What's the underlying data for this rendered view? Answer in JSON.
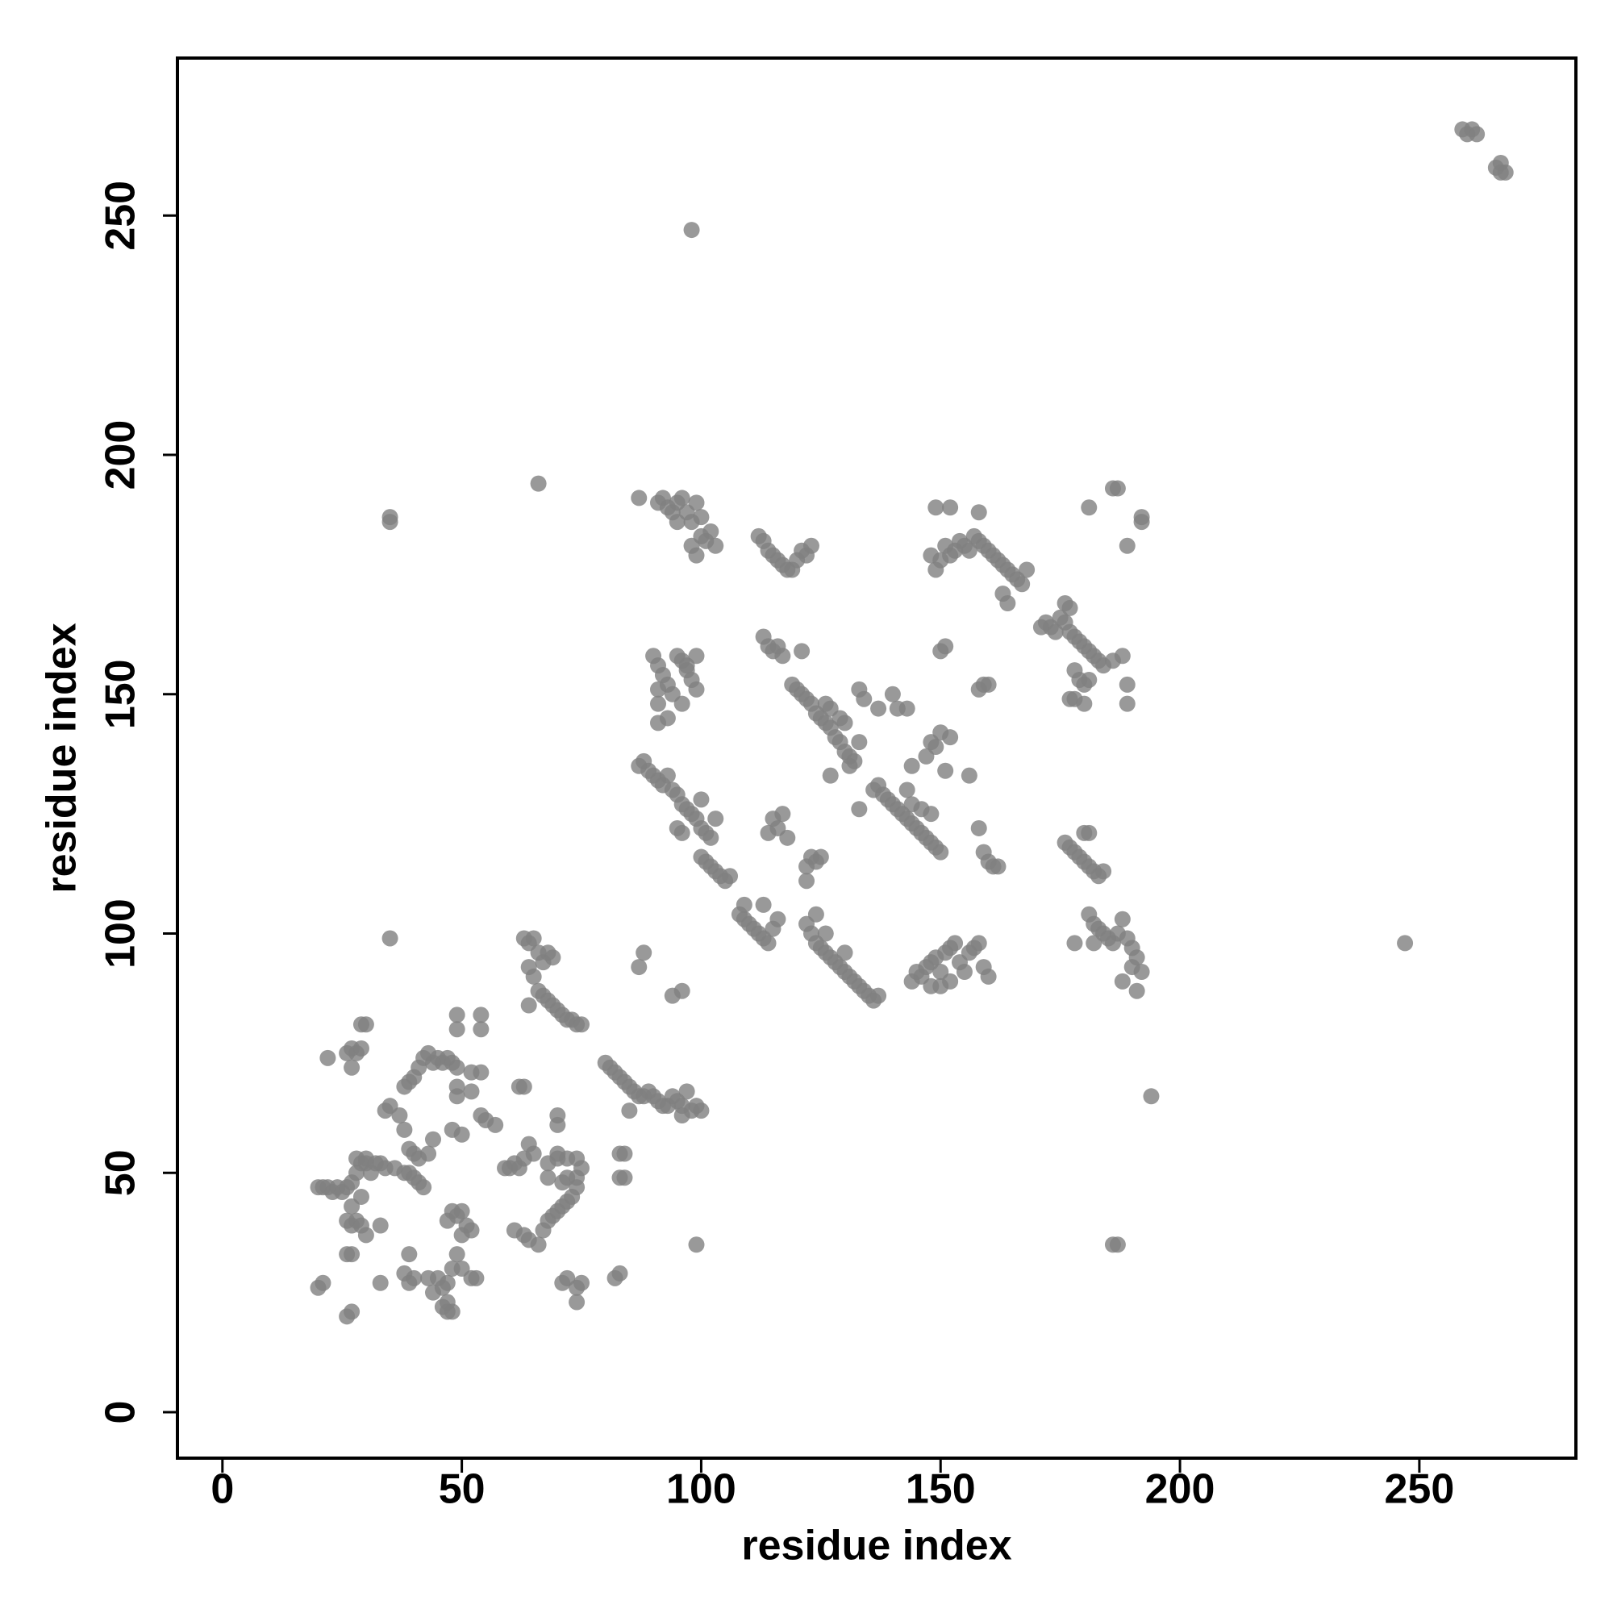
{
  "chart_data": {
    "type": "scatter",
    "xlabel": "residue index",
    "ylabel": "residue index",
    "color": "#808080",
    "xlim": [
      -9.4,
      282.7
    ],
    "ylim": [
      -9.6,
      282.9
    ],
    "xticks": [
      0,
      50,
      100,
      150,
      200,
      250
    ],
    "yticks": [
      0,
      50,
      100,
      150,
      200,
      250
    ],
    "x": [
      259,
      260,
      261,
      262,
      266,
      267,
      268,
      267,
      98,
      66,
      35,
      35,
      247,
      194,
      99,
      186,
      187,
      35,
      20,
      21,
      22,
      23,
      24,
      25,
      26,
      27,
      28,
      29,
      30,
      31,
      28,
      30,
      32,
      33,
      34,
      36,
      38,
      40,
      41,
      42,
      40,
      39,
      48,
      49,
      50,
      47,
      51,
      52,
      50,
      49,
      48,
      50,
      52,
      53,
      47,
      46,
      45,
      44,
      47,
      48,
      47,
      46,
      43,
      40,
      39,
      38,
      33,
      26,
      27,
      20,
      21,
      26,
      27,
      28,
      27,
      29,
      30,
      33,
      39,
      26,
      27,
      29,
      27,
      22,
      26,
      27,
      28,
      29,
      29,
      30,
      34,
      35,
      38,
      39,
      40,
      41,
      42,
      43,
      44,
      45,
      46,
      47,
      48,
      49,
      49,
      49,
      54,
      54,
      55,
      57,
      52,
      54,
      49,
      49,
      52,
      54,
      48,
      50,
      43,
      44,
      38,
      37,
      39,
      41,
      59,
      60,
      61,
      62,
      63,
      64,
      65,
      62,
      63,
      61,
      63,
      64,
      66,
      67,
      68,
      69,
      70,
      71,
      72,
      73,
      74,
      71,
      72,
      70,
      70,
      72,
      74,
      75,
      74,
      68,
      68,
      70,
      70,
      71,
      72,
      74,
      75,
      74,
      82,
      83,
      83,
      84,
      83,
      84,
      63,
      64,
      65,
      66,
      67,
      68,
      69,
      64,
      65,
      66,
      67,
      68,
      69,
      70,
      71,
      72,
      73,
      74,
      75,
      64,
      80,
      81,
      82,
      83,
      84,
      85,
      86,
      87,
      88,
      89,
      90,
      91,
      92,
      93,
      94,
      95,
      96,
      97,
      98,
      99,
      100,
      85,
      96,
      88,
      96,
      87,
      94,
      87,
      91,
      92,
      93,
      94,
      95,
      96,
      97,
      98,
      99,
      100,
      95,
      98,
      99,
      100,
      101,
      102,
      103,
      112,
      113,
      114,
      115,
      116,
      117,
      118,
      119,
      120,
      121,
      122,
      123,
      90,
      91,
      92,
      93,
      94,
      95,
      96,
      97,
      98,
      99,
      91,
      91,
      91,
      93,
      96,
      97,
      99,
      87,
      88,
      89,
      90,
      91,
      92,
      93,
      94,
      95,
      96,
      97,
      98,
      99,
      100,
      101,
      102,
      100,
      101,
      102,
      103,
      104,
      105,
      106,
      95,
      96,
      100,
      103,
      108,
      109,
      110,
      111,
      112,
      113,
      114,
      115,
      116,
      109,
      113,
      122,
      123,
      124,
      125,
      126,
      127,
      128,
      129,
      130,
      131,
      132,
      133,
      134,
      135,
      136,
      137,
      124,
      126,
      130,
      113,
      114,
      115,
      116,
      117,
      121,
      114,
      115,
      116,
      117,
      118,
      119,
      120,
      121,
      122,
      123,
      124,
      125,
      126,
      127,
      128,
      129,
      130,
      131,
      132,
      126,
      127,
      129,
      130,
      133,
      134,
      133,
      131,
      122,
      123,
      124,
      125,
      122,
      127,
      133,
      136,
      137,
      138,
      139,
      140,
      141,
      142,
      143,
      144,
      145,
      146,
      147,
      148,
      149,
      150,
      143,
      144,
      146,
      148,
      147,
      148,
      149,
      150,
      151,
      144,
      143,
      141,
      140,
      137,
      144,
      145,
      146,
      147,
      148,
      149,
      150,
      151,
      152,
      153,
      154,
      155,
      156,
      157,
      158,
      159,
      160,
      148,
      150,
      152,
      148,
      149,
      150,
      151,
      152,
      153,
      154,
      155,
      156,
      157,
      158,
      159,
      160,
      161,
      162,
      163,
      164,
      165,
      166,
      167,
      168,
      163,
      164,
      149,
      152,
      158,
      150,
      151,
      158,
      159,
      160,
      158,
      159,
      160,
      161,
      162,
      171,
      172,
      173,
      174,
      175,
      176,
      177,
      178,
      179,
      180,
      181,
      182,
      183,
      184,
      176,
      177,
      178,
      179,
      180,
      181,
      186,
      188,
      177,
      178,
      180,
      189,
      189,
      176,
      177,
      178,
      179,
      180,
      181,
      182,
      183,
      184,
      180,
      181,
      181,
      182,
      183,
      184,
      185,
      186,
      187,
      188,
      189,
      190,
      191,
      192,
      190,
      188,
      191,
      178,
      182,
      181,
      186,
      187,
      189,
      192,
      192,
      156,
      152
    ],
    "values": [
      268,
      267,
      268,
      267,
      260,
      261,
      259,
      259,
      247,
      194,
      186,
      187,
      98,
      66,
      35,
      35,
      35,
      99,
      47,
      47,
      47,
      46,
      47,
      46,
      47,
      48,
      50,
      52,
      52,
      50,
      53,
      53,
      52,
      52,
      51,
      51,
      50,
      49,
      48,
      47,
      54,
      50,
      42,
      41,
      42,
      40,
      39,
      38,
      37,
      33,
      30,
      30,
      28,
      28,
      27,
      26,
      28,
      25,
      21,
      21,
      23,
      22,
      28,
      28,
      27,
      29,
      27,
      20,
      21,
      26,
      27,
      33,
      33,
      40,
      39,
      39,
      37,
      39,
      33,
      40,
      43,
      45,
      72,
      74,
      75,
      76,
      75,
      76,
      81,
      81,
      63,
      64,
      68,
      69,
      70,
      72,
      74,
      75,
      73,
      74,
      73,
      74,
      73,
      72,
      83,
      80,
      80,
      83,
      61,
      60,
      71,
      71,
      66,
      68,
      67,
      62,
      59,
      58,
      54,
      57,
      59,
      62,
      55,
      53,
      51,
      51,
      52,
      51,
      53,
      56,
      54,
      68,
      68,
      38,
      37,
      36,
      35,
      38,
      40,
      41,
      42,
      43,
      44,
      45,
      47,
      48,
      49,
      53,
      54,
      53,
      53,
      51,
      49,
      49,
      52,
      60,
      62,
      27,
      28,
      26,
      27,
      23,
      28,
      29,
      49,
      49,
      54,
      54,
      99,
      98,
      99,
      96,
      94,
      96,
      95,
      93,
      91,
      88,
      87,
      86,
      85,
      84,
      83,
      82,
      82,
      81,
      81,
      85,
      73,
      72,
      71,
      70,
      69,
      68,
      67,
      66,
      66,
      67,
      66,
      65,
      64,
      64,
      66,
      65,
      64,
      67,
      63,
      64,
      63,
      63,
      62,
      96,
      88,
      93,
      87,
      191,
      190,
      191,
      189,
      188,
      190,
      191,
      188,
      186,
      190,
      187,
      186,
      181,
      179,
      183,
      182,
      184,
      181,
      183,
      182,
      180,
      179,
      178,
      177,
      176,
      176,
      178,
      180,
      179,
      181,
      158,
      156,
      154,
      152,
      150,
      158,
      157,
      155,
      153,
      151,
      151,
      148,
      144,
      145,
      148,
      156,
      158,
      135,
      136,
      134,
      133,
      132,
      131,
      133,
      130,
      129,
      127,
      126,
      125,
      124,
      122,
      121,
      120,
      116,
      115,
      114,
      113,
      112,
      111,
      112,
      122,
      121,
      128,
      124,
      104,
      103,
      102,
      101,
      100,
      99,
      98,
      101,
      103,
      106,
      106,
      102,
      100,
      98,
      97,
      96,
      95,
      94,
      93,
      92,
      91,
      90,
      89,
      88,
      87,
      86,
      87,
      104,
      100,
      96,
      162,
      160,
      159,
      160,
      158,
      159,
      121,
      124,
      122,
      125,
      120,
      152,
      151,
      150,
      149,
      148,
      146,
      145,
      144,
      143,
      141,
      140,
      138,
      137,
      136,
      148,
      147,
      145,
      144,
      151,
      149,
      140,
      135,
      114,
      116,
      115,
      116,
      111,
      133,
      126,
      130,
      131,
      129,
      128,
      127,
      126,
      125,
      124,
      123,
      122,
      121,
      120,
      119,
      118,
      117,
      130,
      127,
      126,
      125,
      137,
      140,
      139,
      142,
      134,
      135,
      147,
      147,
      150,
      147,
      90,
      92,
      91,
      93,
      94,
      95,
      92,
      96,
      97,
      98,
      94,
      92,
      96,
      97,
      98,
      93,
      91,
      89,
      89,
      90,
      179,
      176,
      178,
      181,
      179,
      180,
      182,
      181,
      180,
      183,
      182,
      181,
      180,
      179,
      178,
      177,
      176,
      175,
      174,
      173,
      176,
      171,
      169,
      189,
      189,
      188,
      159,
      160,
      151,
      152,
      152,
      122,
      117,
      115,
      114,
      114,
      164,
      165,
      164,
      163,
      166,
      165,
      163,
      162,
      161,
      160,
      159,
      158,
      157,
      156,
      169,
      168,
      155,
      153,
      152,
      153,
      157,
      158,
      149,
      149,
      148,
      152,
      148,
      119,
      118,
      117,
      116,
      115,
      114,
      113,
      112,
      113,
      121,
      121,
      104,
      102,
      101,
      100,
      99,
      98,
      100,
      103,
      99,
      97,
      95,
      92,
      93,
      90,
      88,
      98,
      98,
      189,
      193,
      193,
      181,
      186,
      187,
      133,
      141
    ]
  }
}
